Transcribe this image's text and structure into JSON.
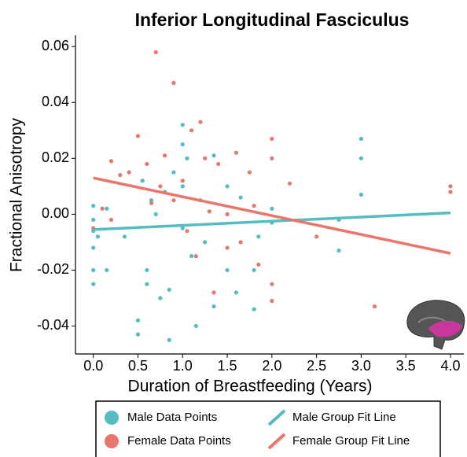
{
  "chart_data": {
    "type": "scatter",
    "title": "Inferior Longitudinal Fasciculus",
    "x_label": "Duration of Breastfeeding (Years)",
    "y_label": "Fractional Anisotropy",
    "xlim": [
      -0.2,
      4.15
    ],
    "ylim": [
      -0.05,
      0.064
    ],
    "xticks": [
      {
        "value": 0,
        "label": "0.0"
      },
      0.5,
      {
        "value": 1,
        "label": "1.0"
      },
      1.5,
      {
        "value": 2,
        "label": "2.0"
      },
      2.5,
      {
        "value": 3,
        "label": "3.0"
      },
      3.5,
      {
        "value": 4,
        "label": "4.0"
      }
    ],
    "yticks": [
      {
        "value": -0.04,
        "label": "-0.04"
      },
      {
        "value": -0.02,
        "label": "-0.02"
      },
      {
        "value": 0,
        "label": "0.00"
      },
      0.02,
      0.04,
      0.06
    ],
    "series": [
      {
        "name": "Male Data Points",
        "color": "#55bcc1",
        "x": [
          0.0,
          0.0,
          0.0,
          0.0,
          0.0,
          0.0,
          0.05,
          0.15,
          0.15,
          0.35,
          0.5,
          0.5,
          0.55,
          0.6,
          0.6,
          0.65,
          0.7,
          0.75,
          0.8,
          0.85,
          0.85,
          0.9,
          1.0,
          1.0,
          1.0,
          1.0,
          1.05,
          1.1,
          1.15,
          1.2,
          1.25,
          1.35,
          1.35,
          1.5,
          1.5,
          1.6,
          1.65,
          1.8,
          1.8,
          1.85,
          2.0,
          2.0,
          2.75,
          2.75,
          3.0,
          3.0,
          3.0
        ],
        "values": [
          0.003,
          -0.002,
          -0.006,
          -0.012,
          -0.02,
          -0.025,
          -0.008,
          -0.02,
          0.002,
          -0.008,
          -0.038,
          -0.043,
          0.012,
          -0.02,
          -0.025,
          0.005,
          0.0,
          -0.03,
          0.008,
          -0.045,
          -0.027,
          0.015,
          0.032,
          0.025,
          0.01,
          -0.005,
          0.02,
          -0.015,
          -0.04,
          0.005,
          -0.01,
          -0.033,
          0.021,
          -0.02,
          0.01,
          -0.028,
          0.006,
          -0.02,
          -0.034,
          -0.008,
          -0.003,
          0.002,
          -0.013,
          -0.002,
          0.027,
          0.02,
          0.007
        ]
      },
      {
        "name": "Female Data Points",
        "color": "#e9766c",
        "x": [
          0.0,
          0.1,
          0.2,
          0.2,
          0.3,
          0.4,
          0.5,
          0.6,
          0.65,
          0.7,
          0.75,
          0.8,
          0.9,
          0.9,
          1.0,
          1.05,
          1.1,
          1.15,
          1.2,
          1.25,
          1.3,
          1.35,
          1.4,
          1.5,
          1.5,
          1.6,
          1.65,
          1.75,
          1.8,
          1.85,
          2.0,
          2.0,
          2.0,
          2.0,
          2.2,
          2.5,
          3.15,
          4.0,
          4.0
        ],
        "values": [
          -0.005,
          0.002,
          0.019,
          -0.002,
          0.014,
          0.015,
          0.028,
          0.018,
          0.004,
          0.058,
          0.01,
          0.021,
          0.047,
          0.005,
          0.012,
          -0.006,
          0.03,
          -0.015,
          0.033,
          0.02,
          0.001,
          -0.028,
          0.018,
          0.0,
          -0.012,
          0.022,
          -0.01,
          0.015,
          0.003,
          -0.018,
          0.027,
          0.02,
          -0.025,
          -0.031,
          0.011,
          -0.008,
          -0.033,
          0.01,
          0.008
        ]
      }
    ],
    "fit_lines": [
      {
        "name": "Male Group Fit Line",
        "color": "#55bcc1",
        "x": [
          0,
          4
        ],
        "values": [
          -0.0055,
          0.0005
        ]
      },
      {
        "name": "Female Group Fit Line",
        "color": "#e9766c",
        "x": [
          0,
          4
        ],
        "values": [
          0.013,
          -0.014
        ]
      }
    ]
  }
}
